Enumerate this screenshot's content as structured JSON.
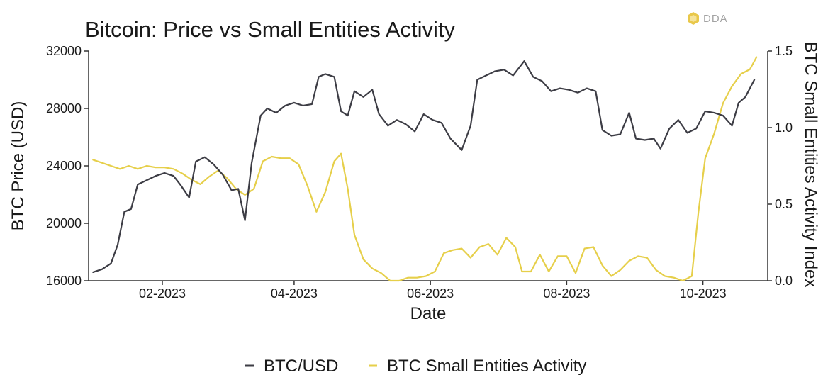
{
  "logo": {
    "text": "DDA"
  },
  "chart_data": {
    "type": "line",
    "title": "Bitcoin: Price vs Small Entities Activity",
    "xlabel": "Date",
    "ylabel": "BTC Price (USD)",
    "y2label": "BTC Small Entities Activity Index",
    "xlim": [
      "2022-12-30",
      "2023-10-30"
    ],
    "ylim": [
      16000,
      32000
    ],
    "y2lim": [
      0,
      1.5
    ],
    "x_ticks": [
      {
        "date": "2023-02-01",
        "label": "02-2023"
      },
      {
        "date": "2023-04-01",
        "label": "04-2023"
      },
      {
        "date": "2023-06-01",
        "label": "06-2023"
      },
      {
        "date": "2023-08-01",
        "label": "08-2023"
      },
      {
        "date": "2023-10-01",
        "label": "10-2023"
      }
    ],
    "y_ticks": [
      "16000",
      "20000",
      "24000",
      "28000",
      "32000"
    ],
    "y2_ticks": [
      "0.0",
      "0.5",
      "1.0",
      "1.5"
    ],
    "grid": false,
    "legend_position": "bottom",
    "series": [
      {
        "name": "BTC/USD",
        "axis": "left",
        "color": "#3d3d45",
        "points": [
          [
            "2023-01-01",
            16600
          ],
          [
            "2023-01-05",
            16800
          ],
          [
            "2023-01-09",
            17200
          ],
          [
            "2023-01-12",
            18500
          ],
          [
            "2023-01-15",
            20800
          ],
          [
            "2023-01-18",
            21000
          ],
          [
            "2023-01-21",
            22700
          ],
          [
            "2023-01-25",
            23000
          ],
          [
            "2023-01-29",
            23300
          ],
          [
            "2023-02-02",
            23500
          ],
          [
            "2023-02-06",
            23300
          ],
          [
            "2023-02-09",
            22700
          ],
          [
            "2023-02-13",
            21800
          ],
          [
            "2023-02-16",
            24300
          ],
          [
            "2023-02-20",
            24600
          ],
          [
            "2023-02-24",
            24100
          ],
          [
            "2023-02-28",
            23400
          ],
          [
            "2023-03-04",
            22300
          ],
          [
            "2023-03-07",
            22400
          ],
          [
            "2023-03-10",
            20200
          ],
          [
            "2023-03-13",
            24200
          ],
          [
            "2023-03-17",
            27500
          ],
          [
            "2023-03-20",
            28000
          ],
          [
            "2023-03-24",
            27700
          ],
          [
            "2023-03-28",
            28200
          ],
          [
            "2023-04-01",
            28400
          ],
          [
            "2023-04-05",
            28200
          ],
          [
            "2023-04-09",
            28300
          ],
          [
            "2023-04-12",
            30200
          ],
          [
            "2023-04-15",
            30400
          ],
          [
            "2023-04-19",
            30200
          ],
          [
            "2023-04-22",
            27800
          ],
          [
            "2023-04-25",
            27500
          ],
          [
            "2023-04-28",
            29200
          ],
          [
            "2023-05-02",
            28800
          ],
          [
            "2023-05-06",
            29300
          ],
          [
            "2023-05-09",
            27600
          ],
          [
            "2023-05-13",
            26800
          ],
          [
            "2023-05-17",
            27200
          ],
          [
            "2023-05-21",
            26900
          ],
          [
            "2023-05-25",
            26400
          ],
          [
            "2023-05-29",
            27600
          ],
          [
            "2023-06-02",
            27200
          ],
          [
            "2023-06-06",
            27000
          ],
          [
            "2023-06-10",
            25900
          ],
          [
            "2023-06-15",
            25100
          ],
          [
            "2023-06-19",
            26800
          ],
          [
            "2023-06-22",
            30000
          ],
          [
            "2023-06-26",
            30300
          ],
          [
            "2023-06-30",
            30600
          ],
          [
            "2023-07-04",
            30700
          ],
          [
            "2023-07-08",
            30300
          ],
          [
            "2023-07-13",
            31300
          ],
          [
            "2023-07-17",
            30200
          ],
          [
            "2023-07-21",
            29900
          ],
          [
            "2023-07-25",
            29200
          ],
          [
            "2023-07-29",
            29400
          ],
          [
            "2023-08-02",
            29300
          ],
          [
            "2023-08-06",
            29100
          ],
          [
            "2023-08-10",
            29400
          ],
          [
            "2023-08-14",
            29200
          ],
          [
            "2023-08-17",
            26500
          ],
          [
            "2023-08-21",
            26100
          ],
          [
            "2023-08-25",
            26200
          ],
          [
            "2023-08-29",
            27700
          ],
          [
            "2023-09-01",
            25900
          ],
          [
            "2023-09-05",
            25800
          ],
          [
            "2023-09-09",
            25900
          ],
          [
            "2023-09-12",
            25200
          ],
          [
            "2023-09-16",
            26600
          ],
          [
            "2023-09-20",
            27200
          ],
          [
            "2023-09-24",
            26300
          ],
          [
            "2023-09-28",
            26600
          ],
          [
            "2023-10-02",
            27800
          ],
          [
            "2023-10-06",
            27700
          ],
          [
            "2023-10-10",
            27500
          ],
          [
            "2023-10-14",
            26800
          ],
          [
            "2023-10-17",
            28400
          ],
          [
            "2023-10-20",
            28800
          ],
          [
            "2023-10-24",
            30000
          ]
        ]
      },
      {
        "name": "BTC Small Entities Activity",
        "axis": "right",
        "color": "#e6cf4a",
        "points": [
          [
            "2023-01-01",
            0.79
          ],
          [
            "2023-01-05",
            0.77
          ],
          [
            "2023-01-09",
            0.75
          ],
          [
            "2023-01-13",
            0.73
          ],
          [
            "2023-01-17",
            0.75
          ],
          [
            "2023-01-21",
            0.73
          ],
          [
            "2023-01-25",
            0.75
          ],
          [
            "2023-01-29",
            0.74
          ],
          [
            "2023-02-02",
            0.74
          ],
          [
            "2023-02-06",
            0.73
          ],
          [
            "2023-02-10",
            0.7
          ],
          [
            "2023-02-14",
            0.66
          ],
          [
            "2023-02-18",
            0.63
          ],
          [
            "2023-02-22",
            0.68
          ],
          [
            "2023-02-26",
            0.72
          ],
          [
            "2023-03-02",
            0.67
          ],
          [
            "2023-03-06",
            0.6
          ],
          [
            "2023-03-10",
            0.56
          ],
          [
            "2023-03-14",
            0.6
          ],
          [
            "2023-03-18",
            0.78
          ],
          [
            "2023-03-22",
            0.81
          ],
          [
            "2023-03-26",
            0.8
          ],
          [
            "2023-03-30",
            0.8
          ],
          [
            "2023-04-03",
            0.76
          ],
          [
            "2023-04-07",
            0.62
          ],
          [
            "2023-04-11",
            0.45
          ],
          [
            "2023-04-15",
            0.58
          ],
          [
            "2023-04-19",
            0.78
          ],
          [
            "2023-04-22",
            0.83
          ],
          [
            "2023-04-25",
            0.6
          ],
          [
            "2023-04-28",
            0.3
          ],
          [
            "2023-05-02",
            0.14
          ],
          [
            "2023-05-06",
            0.08
          ],
          [
            "2023-05-10",
            0.05
          ],
          [
            "2023-05-14",
            0.0
          ],
          [
            "2023-05-18",
            0.0
          ],
          [
            "2023-05-22",
            0.02
          ],
          [
            "2023-05-26",
            0.02
          ],
          [
            "2023-05-30",
            0.03
          ],
          [
            "2023-06-03",
            0.06
          ],
          [
            "2023-06-07",
            0.18
          ],
          [
            "2023-06-11",
            0.2
          ],
          [
            "2023-06-15",
            0.21
          ],
          [
            "2023-06-19",
            0.15
          ],
          [
            "2023-06-23",
            0.22
          ],
          [
            "2023-06-27",
            0.24
          ],
          [
            "2023-07-01",
            0.17
          ],
          [
            "2023-07-05",
            0.28
          ],
          [
            "2023-07-09",
            0.22
          ],
          [
            "2023-07-12",
            0.06
          ],
          [
            "2023-07-16",
            0.06
          ],
          [
            "2023-07-20",
            0.17
          ],
          [
            "2023-07-24",
            0.06
          ],
          [
            "2023-07-28",
            0.16
          ],
          [
            "2023-08-01",
            0.16
          ],
          [
            "2023-08-05",
            0.05
          ],
          [
            "2023-08-09",
            0.21
          ],
          [
            "2023-08-13",
            0.22
          ],
          [
            "2023-08-17",
            0.1
          ],
          [
            "2023-08-21",
            0.03
          ],
          [
            "2023-08-25",
            0.07
          ],
          [
            "2023-08-29",
            0.13
          ],
          [
            "2023-09-02",
            0.16
          ],
          [
            "2023-09-06",
            0.15
          ],
          [
            "2023-09-10",
            0.07
          ],
          [
            "2023-09-14",
            0.03
          ],
          [
            "2023-09-18",
            0.02
          ],
          [
            "2023-09-22",
            0.0
          ],
          [
            "2023-09-26",
            0.03
          ],
          [
            "2023-09-29",
            0.45
          ],
          [
            "2023-10-02",
            0.8
          ],
          [
            "2023-10-06",
            0.96
          ],
          [
            "2023-10-10",
            1.16
          ],
          [
            "2023-10-14",
            1.27
          ],
          [
            "2023-10-18",
            1.35
          ],
          [
            "2023-10-22",
            1.38
          ],
          [
            "2023-10-25",
            1.46
          ]
        ]
      }
    ]
  }
}
